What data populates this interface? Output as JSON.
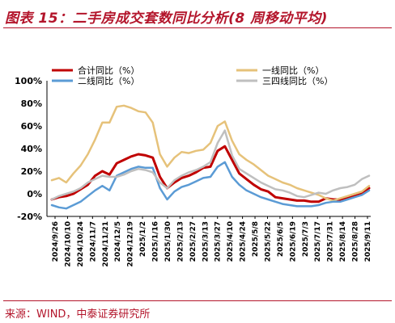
{
  "figure": {
    "title": "图表 15：二手房成交套数同比分析(8 周移动平均)",
    "source": "来源：WIND，中泰证券研究所"
  },
  "chart_data": {
    "type": "line",
    "title": "",
    "xlabel": "",
    "ylabel": "",
    "ylim": [
      -20,
      100
    ],
    "y_ticks": [
      "-20%",
      "0%",
      "20%",
      "40%",
      "60%",
      "80%",
      "100%"
    ],
    "y_tick_values": [
      -20,
      0,
      20,
      40,
      60,
      80,
      100
    ],
    "x_tick_labels": [
      "2024/9/26",
      "2024/10/10",
      "2024/10/24",
      "2024/11/7",
      "2024/11/21",
      "2024/12/5",
      "2024/12/19",
      "2025/1/2",
      "2025/1/16",
      "2025/1/30",
      "2025/2/13",
      "2025/2/27",
      "2025/3/13",
      "2025/3/27",
      "2025/4/10",
      "2025/4/24",
      "2025/5/8",
      "2025/5/22",
      "2025/6/5",
      "2025/6/19",
      "2025/7/3",
      "2025/7/17",
      "2025/7/31",
      "2025/8/14",
      "2025/8/28",
      "2025/9/11"
    ],
    "legend_position": "top",
    "grid": false,
    "series": [
      {
        "name": "合计同比（%）",
        "color": "#c00000",
        "width": 3,
        "values": [
          -5,
          -3,
          -2,
          0,
          4,
          8,
          16,
          20,
          17,
          27,
          30,
          33,
          35,
          34,
          32,
          15,
          5,
          10,
          14,
          16,
          19,
          23,
          24,
          38,
          42,
          30,
          18,
          13,
          8,
          4,
          2,
          -3,
          -4,
          -5,
          -6,
          -6,
          -7,
          -7,
          -4,
          -5,
          -5,
          -4,
          -2,
          0,
          5
        ]
      },
      {
        "name": "一线同比（%）",
        "color": "#e6c27a",
        "width": 2.5,
        "values": [
          12,
          14,
          10,
          18,
          25,
          35,
          48,
          63,
          63,
          77,
          78,
          76,
          73,
          72,
          63,
          35,
          24,
          32,
          37,
          36,
          38,
          39,
          45,
          60,
          64,
          47,
          35,
          30,
          26,
          21,
          16,
          13,
          10,
          8,
          5,
          3,
          1,
          -1,
          -4,
          -6,
          -4,
          -2,
          0,
          2,
          7
        ]
      },
      {
        "name": "二线同比（%）",
        "color": "#5b9bd5",
        "width": 2.5,
        "values": [
          -10,
          -12,
          -13,
          -10,
          -7,
          -2,
          3,
          7,
          3,
          16,
          19,
          22,
          24,
          23,
          23,
          5,
          -5,
          2,
          6,
          8,
          11,
          14,
          15,
          24,
          28,
          15,
          8,
          3,
          0,
          -3,
          -5,
          -7,
          -9,
          -10,
          -11,
          -11,
          -11,
          -10,
          -8,
          -7,
          -7,
          -5,
          -3,
          -1,
          3
        ]
      },
      {
        "name": "三四线同比（%）",
        "color": "#bfbfbf",
        "width": 2.5,
        "values": [
          -5,
          -2,
          0,
          2,
          5,
          10,
          13,
          16,
          15,
          15,
          17,
          20,
          22,
          21,
          19,
          10,
          5,
          12,
          16,
          19,
          21,
          24,
          28,
          45,
          56,
          34,
          22,
          18,
          14,
          10,
          7,
          4,
          3,
          1,
          -2,
          -3,
          -1,
          1,
          0,
          3,
          5,
          6,
          8,
          13,
          16
        ]
      }
    ]
  }
}
